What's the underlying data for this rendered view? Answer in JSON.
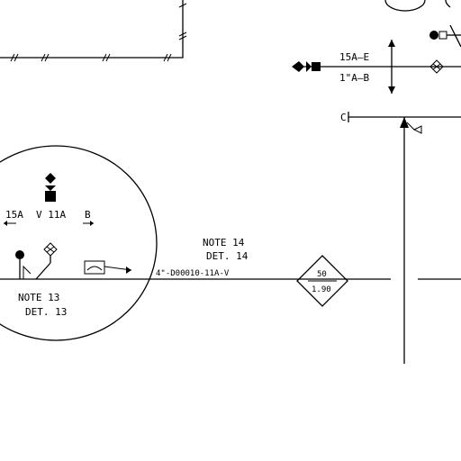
{
  "diagram": {
    "valve_top": {
      "upper": "15A–E",
      "lower": "1\"A–B"
    },
    "valve_left": {
      "left": "15A",
      "mid": "V 11A",
      "right": "B"
    },
    "note13": {
      "line1": "NOTE 13",
      "line2": "DET. 13"
    },
    "note14": {
      "line1": "NOTE 14",
      "line2": "DET. 14"
    },
    "pipe_label": "4\"-D00010-11A-V",
    "diamond_tag": {
      "upper": "50",
      "lower": "1.90"
    },
    "small_tag": "C"
  }
}
